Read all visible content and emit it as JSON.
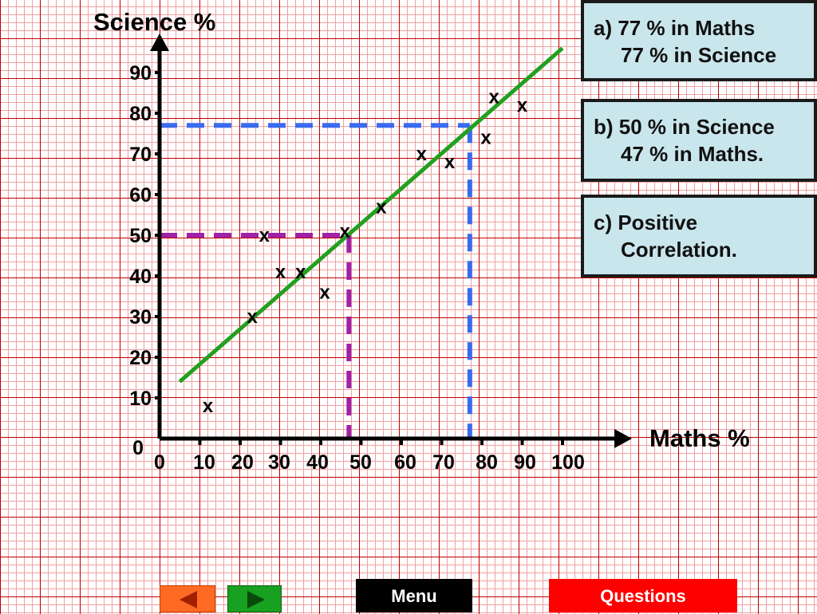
{
  "chart_data": {
    "type": "scatter",
    "title": "",
    "ylabel": "Science %",
    "xlabel": "Maths %",
    "xlim": [
      0,
      100
    ],
    "ylim": [
      0,
      90
    ],
    "x_ticks": [
      0,
      10,
      20,
      30,
      40,
      50,
      60,
      70,
      80,
      90,
      100
    ],
    "y_ticks": [
      0,
      10,
      20,
      30,
      40,
      50,
      60,
      70,
      80,
      90
    ],
    "y_origin_label": "0",
    "marker": "x",
    "points": [
      {
        "x": 12,
        "y": 8
      },
      {
        "x": 23,
        "y": 30
      },
      {
        "x": 26,
        "y": 50
      },
      {
        "x": 30,
        "y": 41
      },
      {
        "x": 35,
        "y": 41
      },
      {
        "x": 41,
        "y": 36
      },
      {
        "x": 46,
        "y": 51
      },
      {
        "x": 55,
        "y": 57
      },
      {
        "x": 65,
        "y": 70
      },
      {
        "x": 72,
        "y": 68
      },
      {
        "x": 81,
        "y": 74
      },
      {
        "x": 83,
        "y": 84
      },
      {
        "x": 90,
        "y": 82
      }
    ],
    "best_fit_line": {
      "x1": 5,
      "y1": 14,
      "x2": 100,
      "y2": 96,
      "color": "#22a020"
    },
    "guide_lines": [
      {
        "name": "blue",
        "x": 77,
        "y": 77,
        "color": "#3a6bf0"
      },
      {
        "name": "purple",
        "x": 47,
        "y": 50,
        "color": "#a020a8"
      }
    ]
  },
  "answers": {
    "a_line1": "a) 77 % in Maths",
    "a_line2": "77 % in Science",
    "b_line1": "b) 50 % in Science",
    "b_line2": "47 % in Maths.",
    "c_line1": "c) Positive",
    "c_line2": "Correlation."
  },
  "nav": {
    "menu_label": "Menu",
    "questions_label": "Questions"
  },
  "colors": {
    "box_bg": "#c9e6ec",
    "menu_bg": "#000000",
    "questions_bg": "#ff0000",
    "prev_bg": "#ff6a22",
    "next_bg": "#18a020"
  }
}
